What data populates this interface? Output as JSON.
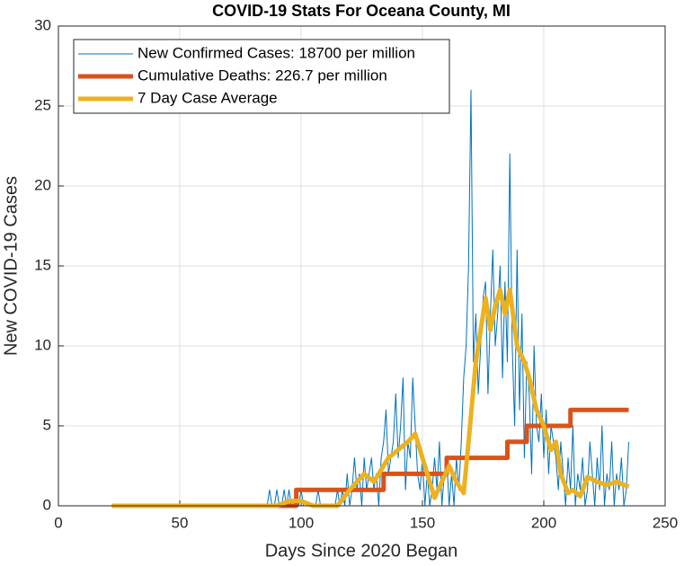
{
  "chart_data": {
    "type": "line",
    "title": "COVID-19 Stats For Oceana County, MI",
    "xlabel": "Days Since 2020 Began",
    "ylabel": "New COVID-19 Cases",
    "xlim": [
      0,
      250
    ],
    "xticks": [
      0,
      50,
      100,
      150,
      200,
      250
    ],
    "ylim": [
      0,
      30
    ],
    "yticks": [
      0,
      5,
      10,
      15,
      20,
      25,
      30
    ],
    "grid": true,
    "legend": "upper left",
    "series": [
      {
        "name": "New Confirmed Cases: 18700 per million",
        "color": "#0072BD",
        "x": [
          22,
          23,
          24,
          25,
          26,
          27,
          28,
          29,
          30,
          31,
          32,
          33,
          34,
          35,
          36,
          37,
          38,
          39,
          40,
          41,
          42,
          43,
          44,
          45,
          46,
          47,
          48,
          49,
          50,
          51,
          52,
          53,
          54,
          55,
          56,
          57,
          58,
          59,
          60,
          61,
          62,
          63,
          64,
          65,
          66,
          67,
          68,
          69,
          70,
          71,
          72,
          73,
          74,
          75,
          76,
          77,
          78,
          79,
          80,
          81,
          82,
          83,
          84,
          85,
          86,
          87,
          88,
          89,
          90,
          91,
          92,
          93,
          94,
          95,
          96,
          97,
          98,
          99,
          100,
          101,
          102,
          103,
          104,
          105,
          106,
          107,
          108,
          109,
          110,
          111,
          112,
          113,
          114,
          115,
          116,
          117,
          118,
          119,
          120,
          121,
          122,
          123,
          124,
          125,
          126,
          127,
          128,
          129,
          130,
          131,
          132,
          133,
          134,
          135,
          136,
          137,
          138,
          139,
          140,
          141,
          142,
          143,
          144,
          145,
          146,
          147,
          148,
          149,
          150,
          151,
          152,
          153,
          154,
          155,
          156,
          157,
          158,
          159,
          160,
          161,
          162,
          163,
          164,
          165,
          166,
          167,
          168,
          169,
          170,
          171,
          172,
          173,
          174,
          175,
          176,
          177,
          178,
          179,
          180,
          181,
          182,
          183,
          184,
          185,
          186,
          187,
          188,
          189,
          190,
          191,
          192,
          193,
          194,
          195,
          196,
          197,
          198,
          199,
          200,
          201,
          202,
          203,
          204,
          205,
          206,
          207,
          208,
          209,
          210,
          211,
          212,
          213,
          214,
          215,
          216,
          217,
          218,
          219,
          220,
          221,
          222,
          223,
          224,
          225,
          226,
          227,
          228,
          229,
          230,
          231,
          232,
          233,
          234,
          235
        ],
        "values": [
          0,
          0,
          0,
          0,
          0,
          0,
          0,
          0,
          0,
          0,
          0,
          0,
          0,
          0,
          0,
          0,
          0,
          0,
          0,
          0,
          0,
          0,
          0,
          0,
          0,
          0,
          0,
          0,
          0,
          0,
          0,
          0,
          0,
          0,
          0,
          0,
          0,
          0,
          0,
          0,
          0,
          0,
          0,
          0,
          0,
          0,
          0,
          0,
          0,
          0,
          0,
          0,
          0,
          0,
          0,
          0,
          0,
          0,
          0,
          0,
          0,
          0,
          0,
          0,
          0,
          1,
          0,
          0,
          1,
          0,
          0,
          1,
          0,
          1,
          0,
          0,
          0,
          0,
          1,
          0,
          0,
          0,
          0,
          0,
          0,
          1,
          0,
          0,
          0,
          0,
          0,
          0,
          0,
          1,
          0,
          1,
          0,
          2,
          0,
          1,
          3,
          1,
          2,
          0,
          3,
          1,
          2,
          3,
          1,
          2,
          0,
          3,
          4,
          6,
          2,
          3,
          4,
          7,
          3,
          5,
          8,
          1,
          4,
          3,
          8,
          5,
          2,
          1,
          3,
          0,
          2,
          0,
          1,
          3,
          1,
          4,
          0,
          2,
          3,
          0,
          2,
          0,
          3,
          1,
          4,
          8,
          10,
          15,
          26,
          9,
          12,
          7,
          10,
          13,
          14,
          7,
          12,
          16,
          10,
          12,
          15,
          8,
          14,
          9,
          22,
          10,
          5,
          16,
          6,
          12,
          3,
          9,
          7,
          2,
          10,
          5,
          4,
          7,
          3,
          6,
          2,
          5,
          4,
          3,
          1,
          4,
          2,
          0,
          3,
          1,
          5,
          0,
          2,
          1,
          3,
          0,
          1,
          4,
          2,
          0,
          3,
          1,
          5,
          0,
          2,
          1,
          4,
          0,
          2,
          1,
          3,
          0,
          1,
          4
        ]
      },
      {
        "name": "Cumulative Deaths: 226.7 per million",
        "color": "#D95319",
        "x": [
          22,
          98,
          98,
          134,
          134,
          160,
          160,
          185,
          185,
          193,
          193,
          211,
          211,
          235
        ],
        "values": [
          0,
          0,
          1,
          1,
          2,
          2,
          3,
          3,
          4,
          4,
          5,
          5,
          6,
          6
        ]
      },
      {
        "name": "7 Day Case Average",
        "color": "#EDB120",
        "x": [
          22,
          90,
          95,
          100,
          105,
          115,
          120,
          126,
          130,
          136,
          140,
          144,
          147,
          150,
          152,
          155,
          158,
          161,
          164,
          167,
          169,
          172,
          174,
          176,
          178,
          180,
          182,
          184,
          186,
          189,
          192,
          194,
          197,
          200,
          203,
          205,
          207,
          210,
          212,
          215,
          218,
          222,
          226,
          230,
          235
        ],
        "values": [
          0,
          0,
          0.3,
          0.3,
          0,
          0,
          1,
          2,
          1.5,
          3,
          3.5,
          4,
          4.5,
          3,
          2,
          0.5,
          1.5,
          2.5,
          1.5,
          0.8,
          4,
          9,
          11,
          13,
          11,
          12.5,
          13.5,
          12,
          13.5,
          10,
          9,
          8,
          6,
          5,
          3.5,
          4,
          2,
          0.8,
          1,
          0.6,
          1.8,
          1.5,
          1.3,
          1.5,
          1.2
        ]
      }
    ]
  }
}
